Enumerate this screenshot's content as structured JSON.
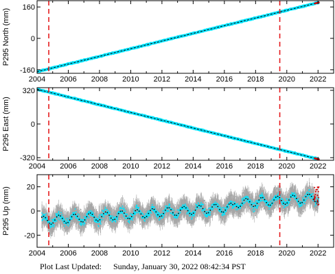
{
  "footer": {
    "label": "Plot Last Updated:",
    "timestamp": "Sunday, January 30, 2022 08:42:34 PST"
  },
  "colors": {
    "data_cyan": "#00e5ff",
    "model_black": "#000000",
    "event_line_red": "#e41a1c",
    "recent_points_red": "#d40000",
    "error_bar_gray": "#a6a6a6",
    "frame": "#000000"
  },
  "chart_data": [
    {
      "type": "scatter",
      "station": "P295",
      "ylabel": "P295 North (mm)",
      "xlim": [
        2004.0,
        2023.0
      ],
      "ylim": [
        -178,
        192
      ],
      "xticks": [
        2004,
        2006,
        2008,
        2010,
        2012,
        2014,
        2016,
        2018,
        2020,
        2022
      ],
      "yticks": [
        -160,
        0,
        160
      ],
      "event_lines_x": [
        2004.75,
        2019.55
      ],
      "series": [
        {
          "values_kind": "observed",
          "x_start": 2004.0,
          "x_end": 2022.05,
          "y_start": -170,
          "y_end": 183
        },
        {
          "values_kind": "model",
          "x_start": 2004.0,
          "x_end": 2022.05,
          "y_start": -170,
          "y_end": 183
        },
        {
          "values_kind": "recent",
          "x_start": 2021.8,
          "x_end": 2022.05,
          "y_start": 178,
          "y_end": 183
        }
      ]
    },
    {
      "type": "scatter",
      "station": "P295",
      "ylabel": "P295 East (mm)",
      "xlim": [
        2004.0,
        2023.0
      ],
      "ylim": [
        -345,
        345
      ],
      "xticks": [
        2004,
        2006,
        2008,
        2010,
        2012,
        2014,
        2016,
        2018,
        2020,
        2022
      ],
      "yticks": [
        -320,
        0,
        320
      ],
      "event_lines_x": [
        2004.75,
        2019.55
      ],
      "series": [
        {
          "values_kind": "observed",
          "x_start": 2004.0,
          "x_end": 2022.05,
          "y_start": 330,
          "y_end": -335
        },
        {
          "values_kind": "model",
          "x_start": 2004.0,
          "x_end": 2022.05,
          "y_start": 330,
          "y_end": -335
        },
        {
          "values_kind": "recent",
          "x_start": 2021.8,
          "x_end": 2022.05,
          "y_start": -326,
          "y_end": -335
        }
      ]
    },
    {
      "type": "scatter",
      "station": "P295",
      "ylabel": "P295 Up (mm)",
      "xlim": [
        2004.0,
        2023.0
      ],
      "ylim": [
        -30,
        30
      ],
      "xticks": [
        2004,
        2006,
        2008,
        2010,
        2012,
        2014,
        2016,
        2018,
        2020,
        2022
      ],
      "yticks": [
        -20,
        0,
        20
      ],
      "event_lines_x": [
        2004.75,
        2019.55
      ],
      "seasonal_model": {
        "x_start": 2004.3,
        "x_end": 2022.05,
        "y_at_start": -8,
        "y_at_end": 11,
        "annual_amplitude": 3.5,
        "step_at": 2016.6,
        "step_size": 3
      },
      "scatter_spread": {
        "cyan": 5,
        "gray": 11
      },
      "recent_points": {
        "x_start": 2021.75,
        "x_end": 2022.05,
        "y_min": 5,
        "y_max": 20
      }
    }
  ]
}
